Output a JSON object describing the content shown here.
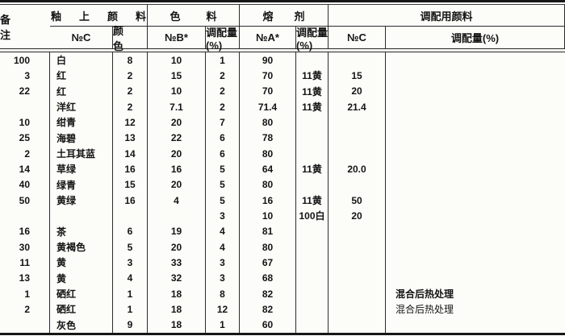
{
  "title": "overglaze-pigment-formulation-table",
  "header": {
    "group_glaze": "釉上颜料",
    "group_colorant": "色料",
    "group_flux": "熔剂",
    "group_mixing": "调配用颜料",
    "group_remarks": "备注",
    "col_noc": "№C",
    "col_color": "颜色",
    "col_nob": "№B*",
    "col_amount_b": "调配量(%)",
    "col_noa": "№A*",
    "col_amount_a": "调配量(%)",
    "col_noc2": "№C",
    "col_amount_c": "调配量(%)"
  },
  "rows": [
    {
      "noc": "100",
      "color": "白",
      "b_no": "8",
      "b_pct": "10",
      "a_no": "1",
      "a_pct": "90",
      "mix_no": "",
      "mix_pct": "",
      "remark": ""
    },
    {
      "noc": "3",
      "color": "红",
      "b_no": "2",
      "b_pct": "15",
      "a_no": "2",
      "a_pct": "70",
      "mix_no": "11黄",
      "mix_pct": "15",
      "remark": ""
    },
    {
      "noc": "22",
      "color": "红",
      "b_no": "2",
      "b_pct": "10",
      "a_no": "2",
      "a_pct": "70",
      "mix_no": "11黄",
      "mix_pct": "20",
      "remark": ""
    },
    {
      "noc": "",
      "color": "洋红",
      "b_no": "2",
      "b_pct": "7.1",
      "a_no": "2",
      "a_pct": "71.4",
      "mix_no": "11黄",
      "mix_pct": "21.4",
      "remark": ""
    },
    {
      "noc": "10",
      "color": "绀青",
      "b_no": "12",
      "b_pct": "20",
      "a_no": "7",
      "a_pct": "80",
      "mix_no": "",
      "mix_pct": "",
      "remark": ""
    },
    {
      "noc": "25",
      "color": "海碧",
      "b_no": "13",
      "b_pct": "22",
      "a_no": "6",
      "a_pct": "78",
      "mix_no": "",
      "mix_pct": "",
      "remark": ""
    },
    {
      "noc": "2",
      "color": "土耳其蓝",
      "b_no": "14",
      "b_pct": "20",
      "a_no": "6",
      "a_pct": "80",
      "mix_no": "",
      "mix_pct": "",
      "remark": ""
    },
    {
      "noc": "14",
      "color": "草绿",
      "b_no": "16",
      "b_pct": "16",
      "a_no": "5",
      "a_pct": "64",
      "mix_no": "11黄",
      "mix_pct": "20.0",
      "remark": ""
    },
    {
      "noc": "40",
      "color": "绿青",
      "b_no": "15",
      "b_pct": "20",
      "a_no": "5",
      "a_pct": "80",
      "mix_no": "",
      "mix_pct": "",
      "remark": ""
    },
    {
      "noc": "50",
      "color": "黄绿",
      "b_no": "16",
      "b_pct": "4",
      "a_no": "5",
      "a_pct": "16",
      "mix_no": "11黄",
      "mix_pct": "50",
      "remark": ""
    },
    {
      "noc": "",
      "color": "",
      "b_no": "",
      "b_pct": "",
      "a_no": "3",
      "a_pct": "10",
      "mix_no": "100白",
      "mix_pct": "20",
      "remark": ""
    },
    {
      "noc": "16",
      "color": "茶",
      "b_no": "6",
      "b_pct": "19",
      "a_no": "4",
      "a_pct": "81",
      "mix_no": "",
      "mix_pct": "",
      "remark": ""
    },
    {
      "noc": "30",
      "color": "黄褐色",
      "b_no": "5",
      "b_pct": "20",
      "a_no": "4",
      "a_pct": "80",
      "mix_no": "",
      "mix_pct": "",
      "remark": ""
    },
    {
      "noc": "11",
      "color": "黄",
      "b_no": "3",
      "b_pct": "33",
      "a_no": "3",
      "a_pct": "67",
      "mix_no": "",
      "mix_pct": "",
      "remark": ""
    },
    {
      "noc": "13",
      "color": "黄",
      "b_no": "4",
      "b_pct": "32",
      "a_no": "3",
      "a_pct": "68",
      "mix_no": "",
      "mix_pct": "",
      "remark": ""
    },
    {
      "noc": "1",
      "color": "硒红",
      "b_no": "1",
      "b_pct": "18",
      "a_no": "8",
      "a_pct": "82",
      "mix_no": "",
      "mix_pct": "",
      "remark": "混合后热处理",
      "remark_bold": true
    },
    {
      "noc": "2",
      "color": "硒红",
      "b_no": "1",
      "b_pct": "18",
      "a_no": "12",
      "a_pct": "82",
      "mix_no": "",
      "mix_pct": "",
      "remark": "混合后热处理",
      "remark_bold": false
    },
    {
      "noc": "",
      "color": "灰色",
      "b_no": "9",
      "b_pct": "18",
      "a_no": "1",
      "a_pct": "60",
      "mix_no": "",
      "mix_pct": "",
      "remark": ""
    }
  ]
}
